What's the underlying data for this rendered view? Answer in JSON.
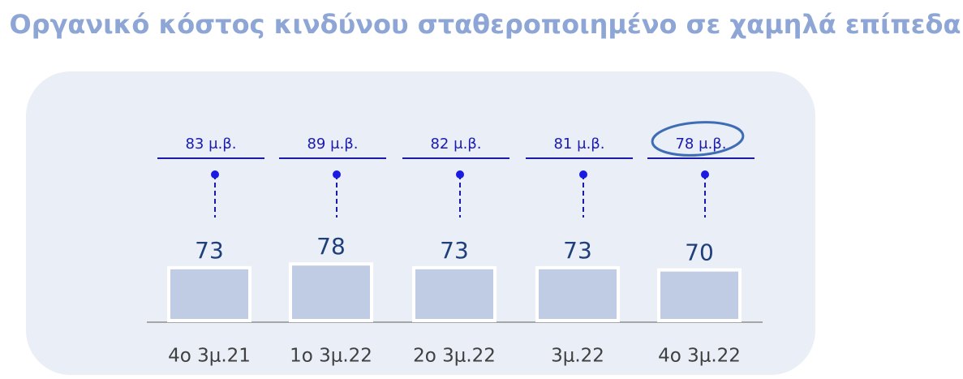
{
  "chart_data": {
    "type": "bar",
    "title": "Οργανικό κόστος κινδύνου σταθεροποιημένο σε χαμηλά επίπεδα",
    "categories": [
      "4ο 3μ.21",
      "1ο 3μ.22",
      "2ο 3μ.22",
      "3μ.22",
      "4ο 3μ.22"
    ],
    "values": [
      73,
      78,
      73,
      73,
      70
    ],
    "annotations": [
      "83 μ.β.",
      "89 μ.β.",
      "82 μ.β.",
      "81 μ.β.",
      "78 μ.β."
    ],
    "color": "#c0cce3"
  }
}
